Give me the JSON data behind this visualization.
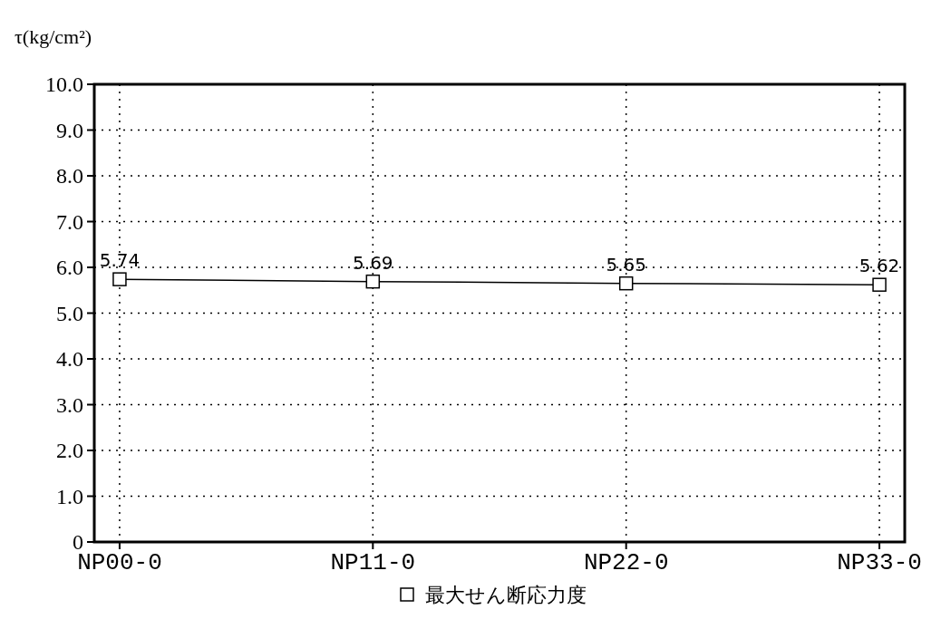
{
  "chart_data": {
    "type": "line",
    "ylabel": "τ(kg/cm²)",
    "categories": [
      "NP00-0",
      "NP11-0",
      "NP22-0",
      "NP33-0"
    ],
    "series": [
      {
        "name": "最大せん断応力度",
        "color": "#000000",
        "values": [
          5.74,
          5.69,
          5.65,
          5.62
        ]
      }
    ],
    "ylim": [
      0,
      10
    ],
    "yticks": [
      0,
      {
        "value": 1,
        "label": "1.0"
      },
      {
        "value": 2,
        "label": "2.0"
      },
      {
        "value": 3,
        "label": "3.0"
      },
      {
        "value": 4,
        "label": "4.0"
      },
      {
        "value": 5,
        "label": "5.0"
      },
      {
        "value": 6,
        "label": "6.0"
      },
      {
        "value": 7,
        "label": "7.0"
      },
      {
        "value": 8,
        "label": "8.0"
      },
      {
        "value": 9,
        "label": "9.0"
      },
      {
        "value": 10,
        "label": "10.0"
      }
    ],
    "grid": true,
    "legend": "bottom",
    "marker": "square",
    "line_style": "solid",
    "data_labels": true
  }
}
